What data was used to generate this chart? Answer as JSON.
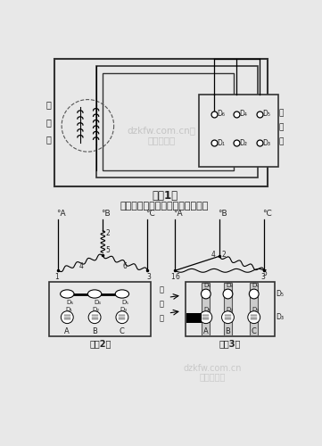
{
  "title_fig1": "图（1）",
  "subtitle": "三相异步电动机接线图及接线方式",
  "label_motor": "电\n动\n机",
  "label_terminal": "接\n线\n板",
  "label_jiexianban": "接\n线\n板",
  "title_fig2": "图（2）",
  "title_fig3": "图（3）",
  "watermark1": "dzkfw.com.cn，",
  "watermark2": "电子开发网",
  "watermark3": "dzkfw.com.cn",
  "watermark4": "电子开发网",
  "bg_color": "#e8e8e8"
}
